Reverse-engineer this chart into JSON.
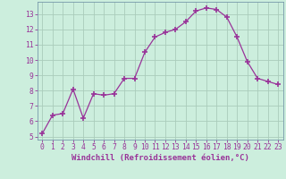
{
  "x": [
    0,
    1,
    2,
    3,
    4,
    5,
    6,
    7,
    8,
    9,
    10,
    11,
    12,
    13,
    14,
    15,
    16,
    17,
    18,
    19,
    20,
    21,
    22,
    23
  ],
  "y": [
    5.2,
    6.4,
    6.5,
    8.1,
    6.2,
    7.8,
    7.7,
    7.8,
    8.8,
    8.8,
    10.5,
    11.5,
    11.8,
    12.0,
    12.5,
    13.2,
    13.4,
    13.3,
    12.8,
    11.5,
    9.9,
    8.8,
    8.6,
    8.4
  ],
  "line_color": "#993399",
  "marker": "+",
  "marker_size": 4,
  "marker_lw": 1.2,
  "bg_color": "#cceedd",
  "grid_color": "#aaccbb",
  "ylim": [
    4.8,
    13.8
  ],
  "xlim": [
    -0.5,
    23.5
  ],
  "yticks": [
    5,
    6,
    7,
    8,
    9,
    10,
    11,
    12,
    13
  ],
  "xticks": [
    0,
    1,
    2,
    3,
    4,
    5,
    6,
    7,
    8,
    9,
    10,
    11,
    12,
    13,
    14,
    15,
    16,
    17,
    18,
    19,
    20,
    21,
    22,
    23
  ],
  "xlabel": "Windchill (Refroidissement éolien,°C)",
  "xlabel_color": "#993399",
  "tick_color": "#993399",
  "axis_color": "#993399",
  "spine_color": "#7799aa",
  "label_fontsize": 6.5,
  "tick_fontsize": 5.8
}
